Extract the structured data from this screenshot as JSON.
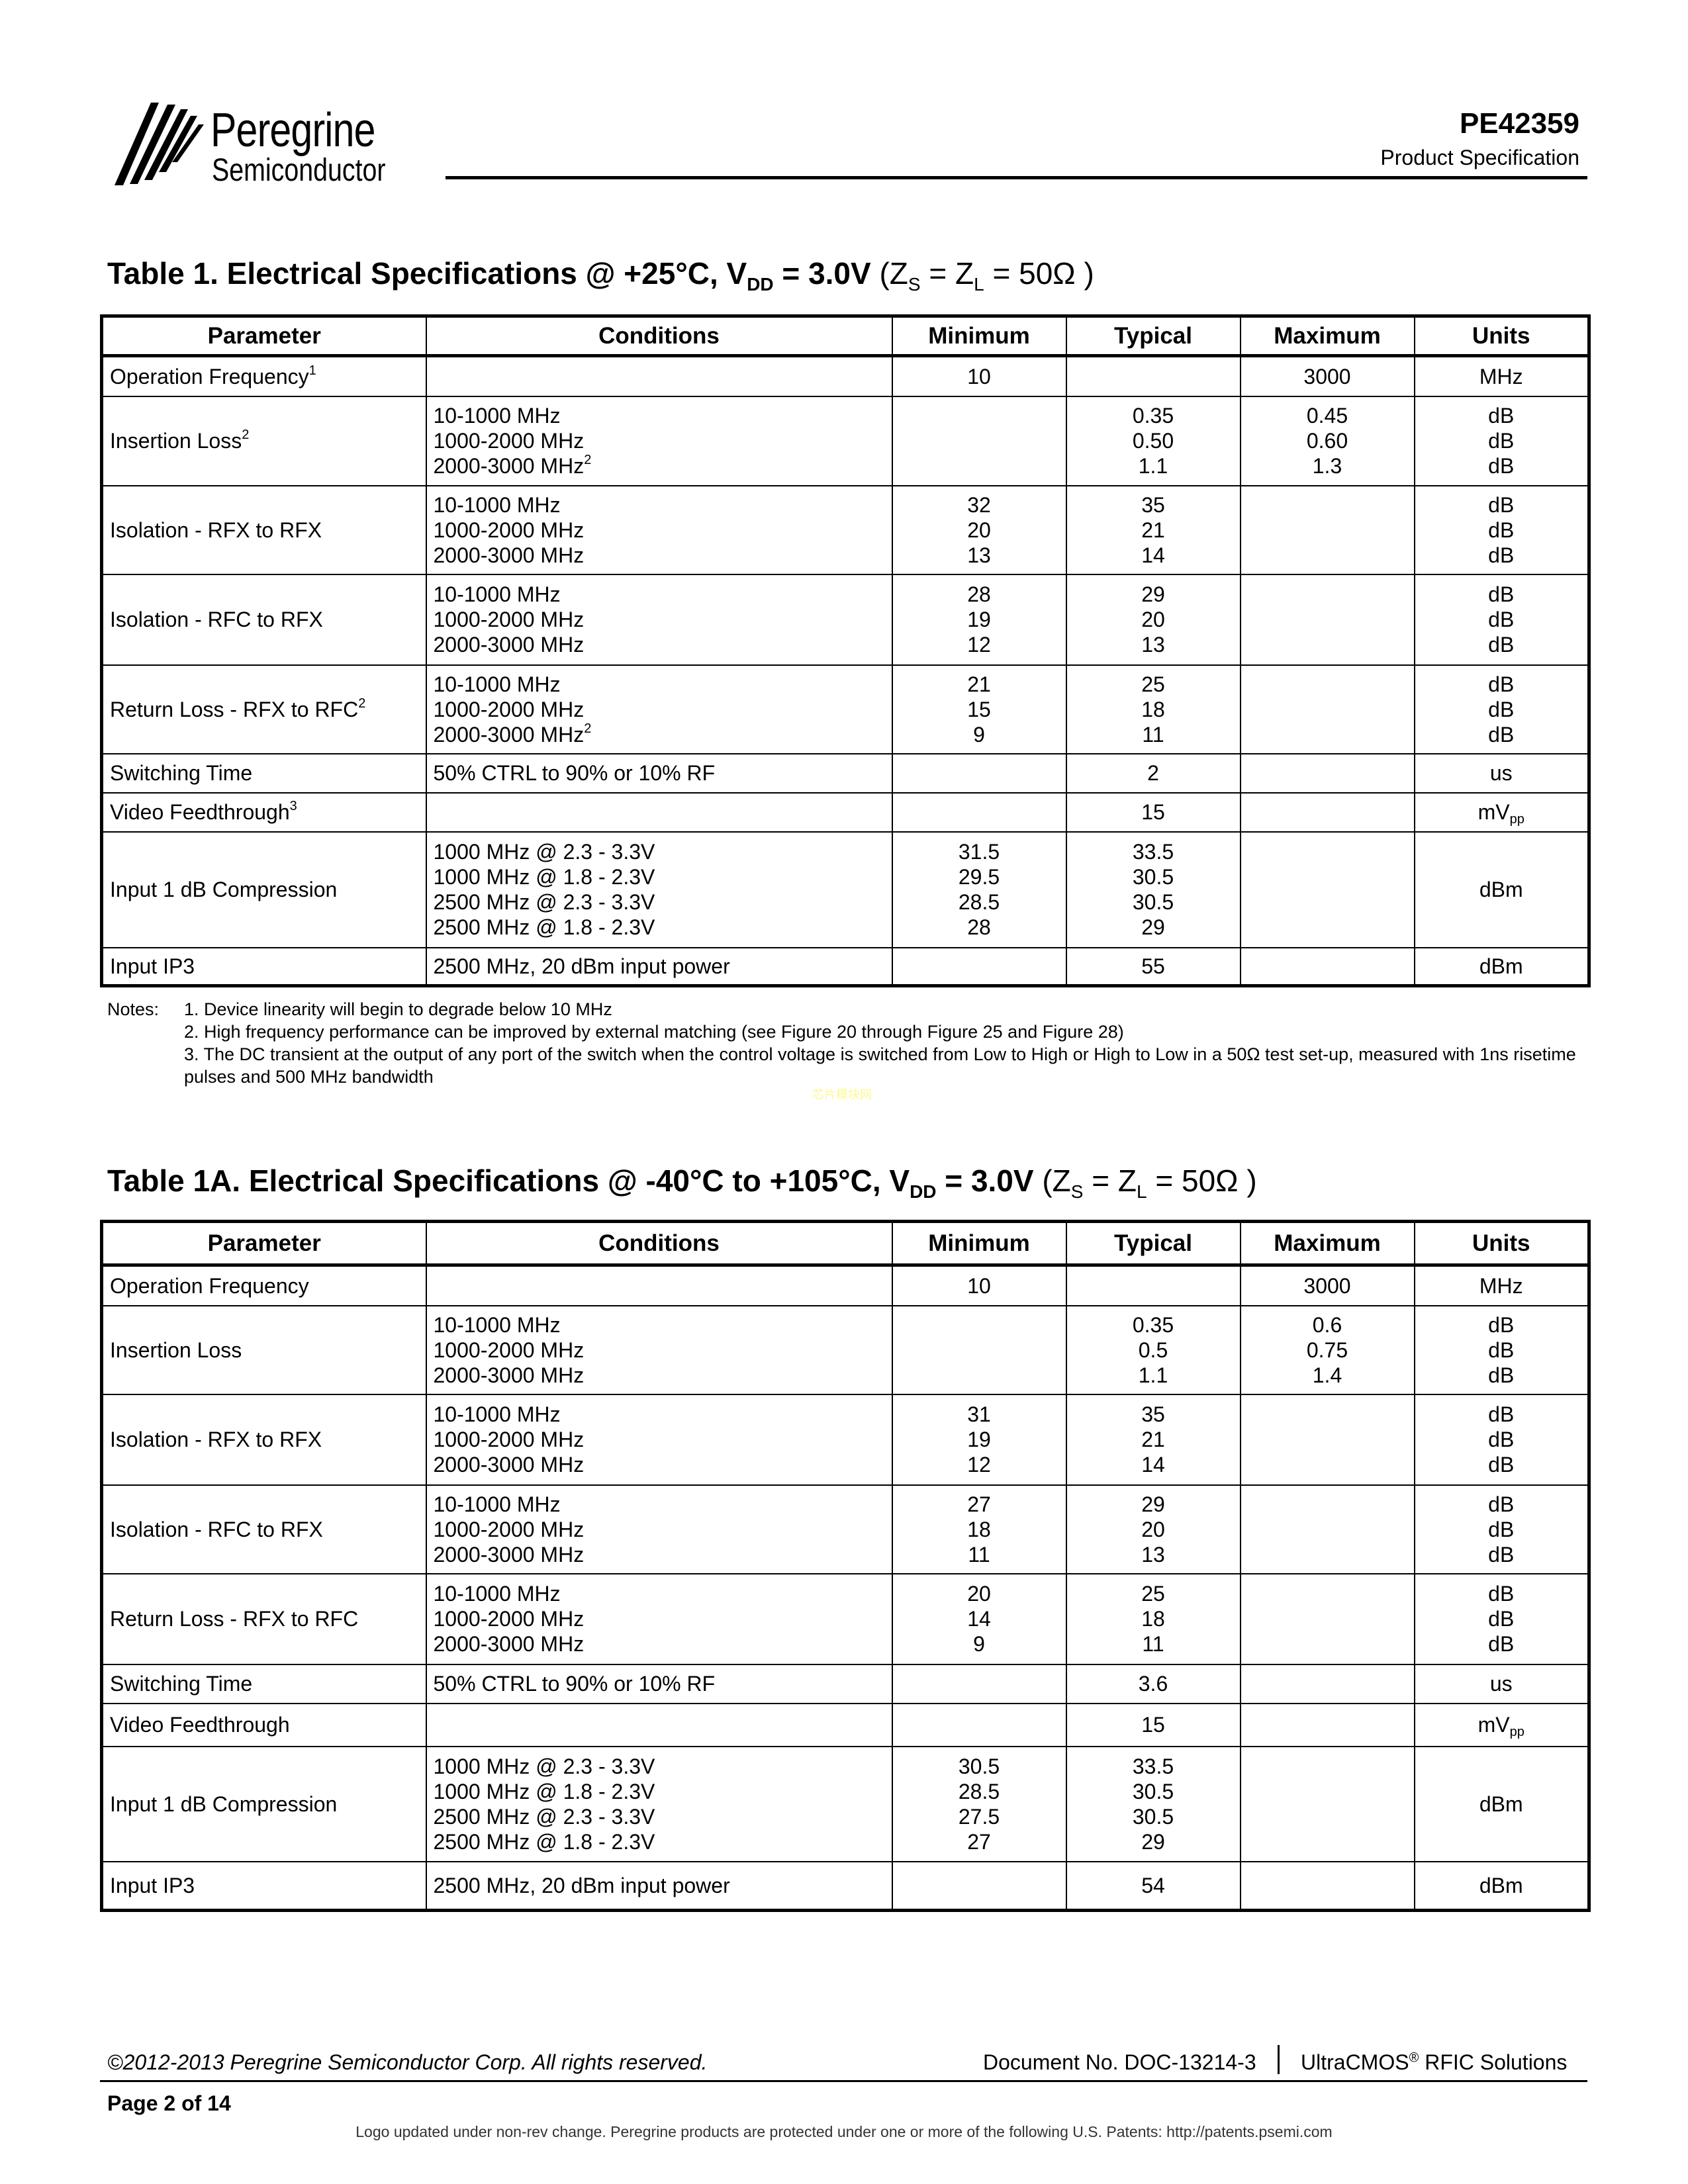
{
  "header": {
    "logo_text": "Peregrine",
    "logo_sub": "Semiconductor",
    "part_number": "PE42359",
    "doc_type": "Product Specification"
  },
  "columns": [
    "Parameter",
    "Conditions",
    "Minimum",
    "Typical",
    "Maximum",
    "Units"
  ],
  "table1": {
    "title_main": "Table 1. Electrical Specifications @ +25°C, V",
    "title_sub": "DD",
    "title_rest": " = 3.0V ",
    "title_norm": "(Z",
    "title_zs": "S",
    "title_mid": " = Z",
    "title_zl": "L",
    "title_end": " = 50Ω )",
    "rows": [
      {
        "param": [
          {
            "t": "Operation Frequency",
            "sup": "1"
          }
        ],
        "cond": [
          ""
        ],
        "min": [
          "10"
        ],
        "typ": [
          ""
        ],
        "max": [
          "3000"
        ],
        "units": [
          "MHz"
        ]
      },
      {
        "param": [
          {
            "t": "Insertion Loss",
            "sup": "2"
          }
        ],
        "cond": [
          "10-1000 MHz",
          "1000-2000 MHz",
          {
            "t": "2000-3000 MHz",
            "sup": "2"
          }
        ],
        "min": [
          ""
        ],
        "typ": [
          "0.35",
          "0.50",
          "1.1"
        ],
        "max": [
          "0.45",
          "0.60",
          "1.3"
        ],
        "units": [
          "dB",
          "dB",
          "dB"
        ]
      },
      {
        "param": [
          "Isolation - RFX to RFX"
        ],
        "cond": [
          "10-1000 MHz",
          "1000-2000 MHz",
          "2000-3000 MHz"
        ],
        "min": [
          "32",
          "20",
          "13"
        ],
        "typ": [
          "35",
          "21",
          "14"
        ],
        "max": [
          ""
        ],
        "units": [
          "dB",
          "dB",
          "dB"
        ]
      },
      {
        "param": [
          "Isolation - RFC to RFX"
        ],
        "cond": [
          "10-1000 MHz",
          "1000-2000 MHz",
          "2000-3000 MHz"
        ],
        "min": [
          "28",
          "19",
          "12"
        ],
        "typ": [
          "29",
          "20",
          "13"
        ],
        "max": [
          ""
        ],
        "units": [
          "dB",
          "dB",
          "dB"
        ]
      },
      {
        "param": [
          {
            "t": "Return Loss - RFX to RFC",
            "sup": "2"
          }
        ],
        "cond": [
          "10-1000 MHz",
          "1000-2000 MHz",
          {
            "t": "2000-3000 MHz",
            "sup": "2"
          }
        ],
        "min": [
          "21",
          "15",
          "9"
        ],
        "typ": [
          "25",
          "18",
          "11"
        ],
        "max": [
          ""
        ],
        "units": [
          "dB",
          "dB",
          "dB"
        ]
      },
      {
        "param": [
          "Switching Time"
        ],
        "cond": [
          "50% CTRL to 90% or 10% RF"
        ],
        "min": [
          ""
        ],
        "typ": [
          "2"
        ],
        "max": [
          ""
        ],
        "units": [
          "us"
        ]
      },
      {
        "param": [
          {
            "t": "Video Feedthrough",
            "sup": "3"
          }
        ],
        "cond": [
          ""
        ],
        "min": [
          ""
        ],
        "typ": [
          "15"
        ],
        "max": [
          ""
        ],
        "units": [
          {
            "t": "mV",
            "sub": "pp"
          }
        ]
      },
      {
        "param": [
          "Input 1 dB Compression"
        ],
        "cond": [
          "1000 MHz @ 2.3 - 3.3V",
          "1000 MHz @ 1.8 - 2.3V",
          "2500 MHz @ 2.3 - 3.3V",
          "2500 MHz @ 1.8 - 2.3V"
        ],
        "min": [
          "31.5",
          "29.5",
          "28.5",
          "28"
        ],
        "typ": [
          "33.5",
          "30.5",
          "30.5",
          "29"
        ],
        "max": [
          ""
        ],
        "units": [
          "dBm"
        ]
      },
      {
        "param": [
          "Input IP3"
        ],
        "cond": [
          "2500 MHz, 20 dBm input power"
        ],
        "min": [
          ""
        ],
        "typ": [
          "55"
        ],
        "max": [
          ""
        ],
        "units": [
          "dBm"
        ]
      }
    ]
  },
  "notes": {
    "label": "Notes:",
    "items": [
      "1. Device linearity will begin to degrade below 10 MHz",
      "2. High frequency performance can be improved by external matching (see Figure 20 through Figure 25 and Figure 28)",
      "3. The DC transient at the output of any port of the switch when the control voltage is switched from Low to High or High to Low in a 50Ω test set-up, measured with 1ns risetime pulses and 500 MHz bandwidth"
    ]
  },
  "watermark": "芯片模块网",
  "table1a": {
    "title_main": "Table 1A. Electrical Specifications @ -40°C to +105°C, V",
    "title_sub": "DD",
    "title_rest": " = 3.0V ",
    "title_norm": "(Z",
    "title_zs": "S",
    "title_mid": " = Z",
    "title_zl": "L",
    "title_end": " = 50Ω )",
    "rows": [
      {
        "param": [
          "Operation Frequency"
        ],
        "cond": [
          ""
        ],
        "min": [
          "10"
        ],
        "typ": [
          ""
        ],
        "max": [
          "3000"
        ],
        "units": [
          "MHz"
        ]
      },
      {
        "param": [
          "Insertion Loss"
        ],
        "cond": [
          "10-1000 MHz",
          "1000-2000 MHz",
          "2000-3000 MHz"
        ],
        "min": [
          ""
        ],
        "typ": [
          "0.35",
          "0.5",
          "1.1"
        ],
        "max": [
          "0.6",
          "0.75",
          "1.4"
        ],
        "units": [
          "dB",
          "dB",
          "dB"
        ]
      },
      {
        "param": [
          "Isolation - RFX to RFX"
        ],
        "cond": [
          "10-1000 MHz",
          "1000-2000 MHz",
          "2000-3000 MHz"
        ],
        "min": [
          "31",
          "19",
          "12"
        ],
        "typ": [
          "35",
          "21",
          "14"
        ],
        "max": [
          ""
        ],
        "units": [
          "dB",
          "dB",
          "dB"
        ]
      },
      {
        "param": [
          "Isolation - RFC to RFX"
        ],
        "cond": [
          "10-1000 MHz",
          "1000-2000 MHz",
          "2000-3000 MHz"
        ],
        "min": [
          "27",
          "18",
          "11"
        ],
        "typ": [
          "29",
          "20",
          "13"
        ],
        "max": [
          ""
        ],
        "units": [
          "dB",
          "dB",
          "dB"
        ]
      },
      {
        "param": [
          "Return Loss - RFX to RFC"
        ],
        "cond": [
          "10-1000 MHz",
          "1000-2000 MHz",
          "2000-3000 MHz"
        ],
        "min": [
          "20",
          "14",
          "9"
        ],
        "typ": [
          "25",
          "18",
          "11"
        ],
        "max": [
          ""
        ],
        "units": [
          "dB",
          "dB",
          "dB"
        ]
      },
      {
        "param": [
          "Switching Time"
        ],
        "cond": [
          "50% CTRL to 90% or 10% RF"
        ],
        "min": [
          ""
        ],
        "typ": [
          "3.6"
        ],
        "max": [
          ""
        ],
        "units": [
          "us"
        ]
      },
      {
        "param": [
          "Video Feedthrough"
        ],
        "cond": [
          ""
        ],
        "min": [
          ""
        ],
        "typ": [
          "15"
        ],
        "max": [
          ""
        ],
        "units": [
          {
            "t": "mV",
            "sub": "pp"
          }
        ]
      },
      {
        "param": [
          "Input 1 dB Compression"
        ],
        "cond": [
          "1000 MHz @ 2.3 - 3.3V",
          "1000 MHz @ 1.8 - 2.3V",
          "2500 MHz @ 2.3 - 3.3V",
          "2500 MHz @ 1.8 - 2.3V"
        ],
        "min": [
          "30.5",
          "28.5",
          "27.5",
          "27"
        ],
        "typ": [
          "33.5",
          "30.5",
          "30.5",
          "29"
        ],
        "max": [
          ""
        ],
        "units": [
          "dBm"
        ]
      },
      {
        "param": [
          "Input IP3"
        ],
        "cond": [
          "2500 MHz, 20 dBm input power"
        ],
        "min": [
          ""
        ],
        "typ": [
          "54"
        ],
        "max": [
          ""
        ],
        "units": [
          "dBm"
        ]
      }
    ]
  },
  "footer": {
    "copyright": "©2012-2013 Peregrine Semiconductor Corp.  All rights reserved.",
    "doc_number": "Document No. DOC-13214-3",
    "solutions": "UltraCMOS",
    "solutions_sup": "®",
    "solutions_rest": " RFIC Solutions",
    "page": "Page  2 of 14",
    "patents": "Logo updated under non-rev change.  Peregrine products are protected under one or more of the following U.S. Patents:  http://patents.psemi.com"
  }
}
